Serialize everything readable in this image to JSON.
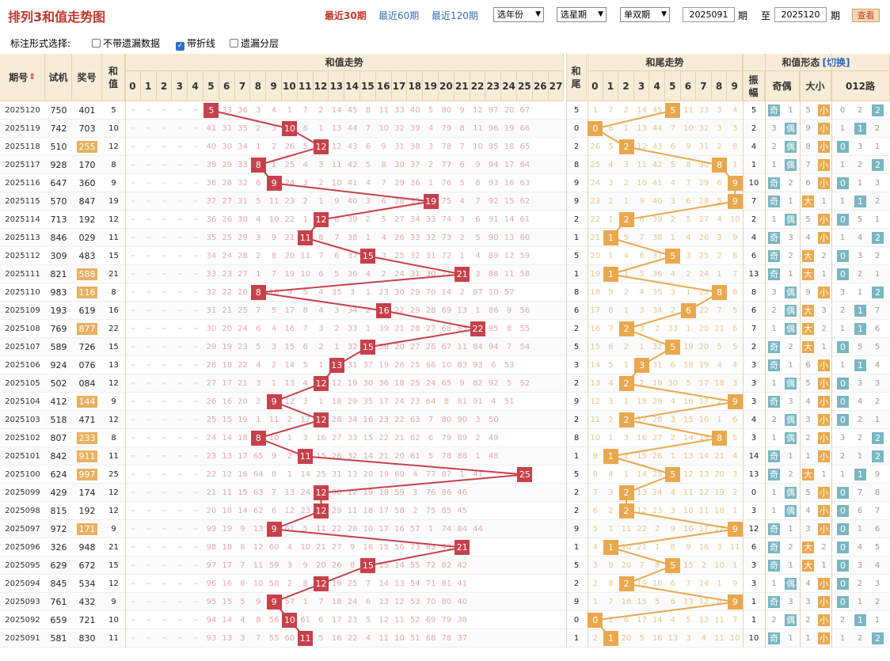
{
  "header": {
    "title": "排列3和值走势图",
    "links": [
      {
        "label": "最近30期",
        "active": true
      },
      {
        "label": "最近60期",
        "active": false
      },
      {
        "label": "最近120期",
        "active": false
      }
    ],
    "selects": [
      "选年份",
      "选星期",
      "单双期"
    ],
    "from_issue": "2025091",
    "label_qi1": "期",
    "label_to": "至",
    "to_issue": "2025120",
    "label_qi2": "期",
    "query_button": "查看"
  },
  "options": {
    "label": "标注形式选择:",
    "items": [
      {
        "label": "不带遗漏数据",
        "checked": false
      },
      {
        "label": "带折线",
        "checked": true
      },
      {
        "label": "遗漏分层",
        "checked": false
      }
    ]
  },
  "table_header": {
    "period": "期号",
    "sort_icon": "⇕",
    "trial": "试机",
    "prize": "奖号",
    "sum_top": "和",
    "sum_bot": "值",
    "sum_trend": "和值走势",
    "tail_top": "和",
    "tail_bot": "尾",
    "tail_trend": "和尾走势",
    "form": "和值形态",
    "switch": "[切换]",
    "amp_top": "振",
    "amp_bot": "幅",
    "oddeven": "奇偶",
    "bigsmall": "大小",
    "route": "012路"
  },
  "colors": {
    "sum_line": "#c8404a",
    "tail_line": "#e9a84e",
    "header_bg": "#f7ecd8"
  },
  "rows": [
    {
      "p": "2025120",
      "t": "750",
      "j": "401",
      "hl": false,
      "s": 5,
      "tail": 5,
      "amp": "5",
      "oe": [
        "奇",
        "1"
      ],
      "bs": [
        "5",
        "小"
      ],
      "r": [
        "0",
        "2",
        "2"
      ],
      "om": "33 36 3 4 1 7 2 14 45 8 11 33 40 5 80 9 12 97 20 67",
      "tom": "1 7 2 14 45 11 33 3 4"
    },
    {
      "p": "2025119",
      "t": "742",
      "j": "703",
      "hl": false,
      "s": 10,
      "tail": 0,
      "amp": "2",
      "oe": [
        "3",
        "偶"
      ],
      "bs": [
        "9",
        "小"
      ],
      "r": [
        "1",
        "1",
        "2"
      ],
      "om": "41 31 35 2 3 6 1 13 44 7 10 32 39 4 79 8 11 96 19 66",
      "tom": "6 1 13 44 7 10 32 3 3"
    },
    {
      "p": "2025118",
      "t": "510",
      "j": "255",
      "hl": true,
      "s": 12,
      "tail": 2,
      "amp": "4",
      "oe": [
        "2",
        "偶"
      ],
      "bs": [
        "8",
        "小"
      ],
      "r": [
        "0",
        "3",
        "1"
      ],
      "om": "40 30 34 1 2 26 5 12 43 6 9 31 38 3 78 7 10 95 18 65",
      "tom": "26 5 12 43 6 9 31 2 8"
    },
    {
      "p": "2025117",
      "t": "928",
      "j": "170",
      "hl": false,
      "s": 8,
      "tail": 8,
      "amp": "1",
      "oe": [
        "1",
        "偶"
      ],
      "bs": [
        "7",
        "小"
      ],
      "r": [
        "1",
        "2",
        "2"
      ],
      "om": "39 29 33 1 25 4 3 11 42 5 8 30 37 2 77 6 9 94 17 64",
      "tom": "25 4 3 11 42 5 8 30 1"
    },
    {
      "p": "2025116",
      "t": "647",
      "j": "360",
      "hl": false,
      "s": 9,
      "tail": 9,
      "amp": "10",
      "oe": [
        "奇",
        "2"
      ],
      "bs": [
        "6",
        "小"
      ],
      "r": [
        "0",
        "1",
        "3"
      ],
      "om": "38 28 32 6 24 3 2 10 41 4 7 29 36 1 76 5 8 93 16 63",
      "tom": "24 3 2 10 41 4 7 29 6"
    },
    {
      "p": "2025115",
      "t": "570",
      "j": "847",
      "hl": false,
      "s": 19,
      "tail": 9,
      "amp": "7",
      "oe": [
        "奇",
        "1"
      ],
      "bs": [
        "大",
        "1"
      ],
      "r": [
        "1",
        "1",
        "2"
      ],
      "om": "37 27 31 5 11 23 2 1 9 40 3 6 28 35 75 4 7 92 15 62",
      "tom": "23 2 1 9 40 3 6 28 5"
    },
    {
      "p": "2025114",
      "t": "713",
      "j": "192",
      "hl": false,
      "s": 12,
      "tail": 2,
      "amp": "2",
      "oe": [
        "1",
        "偶"
      ],
      "bs": [
        "5",
        "小"
      ],
      "r": [
        "0",
        "5",
        "1"
      ],
      "om": "36 26 30 4 10 22 1 8 39 2 5 27 34 33 74 3 6 91 14 61",
      "tom": "22 1 8 39 2 5 27 4 10"
    },
    {
      "p": "2025113",
      "t": "846",
      "j": "029",
      "hl": false,
      "s": 11,
      "tail": 1,
      "amp": "4",
      "oe": [
        "奇",
        "3"
      ],
      "bs": [
        "4",
        "小"
      ],
      "r": [
        "1",
        "4",
        "2"
      ],
      "om": "35 25 29 3 9 21 8 7 38 1 4 26 33 32 73 2 5 90 13 60",
      "tom": "21 5 7 38 1 4 26 3 9"
    },
    {
      "p": "2025112",
      "t": "309",
      "j": "483",
      "hl": false,
      "s": 15,
      "tail": 5,
      "amp": "6",
      "oe": [
        "奇",
        "2"
      ],
      "bs": [
        "大",
        "2"
      ],
      "r": [
        "0",
        "3",
        "2"
      ],
      "om": "34 24 28 2 8 20 11 7 6 37 3 25 32 31 72 1 4 89 12 59",
      "tom": "20 1 4 6 37 3 25 2 8"
    },
    {
      "p": "2025111",
      "t": "821",
      "j": "588",
      "hl": true,
      "s": 21,
      "tail": 1,
      "amp": "13",
      "oe": [
        "奇",
        "1"
      ],
      "bs": [
        "大",
        "1"
      ],
      "r": [
        "0",
        "2",
        "1"
      ],
      "om": "33 23 27 1 7 19 10 6 5 36 4 2 24 31 30 71 3 88 11 58",
      "tom": "19 1 5 36 4 2 24 1 7"
    },
    {
      "p": "2025110",
      "t": "983",
      "j": "116",
      "hl": true,
      "s": 8,
      "tail": 8,
      "amp": "8",
      "oe": [
        "3",
        "偶"
      ],
      "bs": [
        "9",
        "小"
      ],
      "r": [
        "3",
        "1",
        "2"
      ],
      "om": "32 22 26 18 9 5 4 35 3 1 23 30 29 70 14 2 87 10 57",
      "tom": "18 9 2 4 35 3 1 23 8"
    },
    {
      "p": "2025109",
      "t": "193",
      "j": "619",
      "hl": false,
      "s": 16,
      "tail": 6,
      "amp": "6",
      "oe": [
        "2",
        "偶"
      ],
      "bs": [
        "大",
        "3"
      ],
      "r": [
        "2",
        "1",
        "7"
      ],
      "om": "31 21 25 7 5 17 8 4 3 34 2 22 29 28 69 13 1 86 9 56",
      "tom": "17 8 1 3 34 2 22 7 5"
    },
    {
      "p": "2025108",
      "t": "769",
      "j": "877",
      "hl": true,
      "s": 22,
      "tail": 2,
      "amp": "7",
      "oe": [
        "1",
        "偶"
      ],
      "bs": [
        "大",
        "2"
      ],
      "r": [
        "1",
        "1",
        "6"
      ],
      "om": "30 20 24 6 4 16 7 3 2 33 1 39 21 28 27 68 85 95 8 55",
      "tom": "16 7 3 2 33 1 20 21 6"
    },
    {
      "p": "2025107",
      "t": "589",
      "j": "726",
      "hl": false,
      "s": 15,
      "tail": 5,
      "amp": "2",
      "oe": [
        "奇",
        "2"
      ],
      "bs": [
        "大",
        "1"
      ],
      "r": [
        "0",
        "5",
        "5"
      ],
      "om": "29 19 23 5 3 15 6 2 1 32 38 20 27 26 67 11 84 94 7 54",
      "tom": "15 6 2 1 32 19 20 5 5"
    },
    {
      "p": "2025106",
      "t": "924",
      "j": "076",
      "hl": false,
      "s": 13,
      "tail": 3,
      "amp": "3",
      "oe": [
        "奇",
        "1"
      ],
      "bs": [
        "6",
        "小"
      ],
      "r": [
        "1",
        "1",
        "4"
      ],
      "om": "28 18 22 4 2 14 5 1 31 37 19 26 25 66 10 83 93 6 53",
      "tom": "14 5 1 31 6 18 19 4 4"
    },
    {
      "p": "2025105",
      "t": "502",
      "j": "084",
      "hl": false,
      "s": 12,
      "tail": 2,
      "amp": "3",
      "oe": [
        "1",
        "偶"
      ],
      "bs": [
        "5",
        "小"
      ],
      "r": [
        "0",
        "3",
        "3"
      ],
      "om": "27 17 21 3 1 13 4 12 19 30 36 18 25 24 65 9 82 92 5 52",
      "tom": "13 4 2 19 30 5 17 18 3"
    },
    {
      "p": "2025104",
      "t": "412",
      "j": "144",
      "hl": true,
      "s": 9,
      "tail": 9,
      "amp": "3",
      "oe": [
        "奇",
        "3"
      ],
      "bs": [
        "4",
        "小"
      ],
      "r": [
        "0",
        "4",
        "2"
      ],
      "om": "26 16 20 2 12 3 1 18 29 35 17 24 23 64 8 81 91 4 51",
      "tom": "12 3 1 18 29 4 16 17 2"
    },
    {
      "p": "2025103",
      "t": "518",
      "j": "471",
      "hl": false,
      "s": 12,
      "tail": 2,
      "amp": "4",
      "oe": [
        "2",
        "偶"
      ],
      "bs": [
        "3",
        "小"
      ],
      "r": [
        "0",
        "2",
        "1"
      ],
      "om": "25 15 19 1 11 2 17 28 34 16 23 22 63 7 80 90 3 50",
      "tom": "11 2 17 28 3 15 16 1 6"
    },
    {
      "p": "2025102",
      "t": "807",
      "j": "233",
      "hl": true,
      "s": 8,
      "tail": 8,
      "amp": "3",
      "oe": [
        "1",
        "偶"
      ],
      "bs": [
        "2",
        "小"
      ],
      "r": [
        "3",
        "2",
        "2"
      ],
      "om": "24 14 18 10 1 3 16 27 33 15 22 21 62 6 79 89 2 49",
      "tom": "10 1 3 16 27 2 14 15 5"
    },
    {
      "p": "2025101",
      "t": "842",
      "j": "911",
      "hl": true,
      "s": 11,
      "tail": 1,
      "amp": "14",
      "oe": [
        "奇",
        "1"
      ],
      "bs": [
        "1",
        "小"
      ],
      "r": [
        "2",
        "1",
        "2"
      ],
      "om": "23 13 17 65 9 2 15 26 32 14 21 20 61 5 78 88 1 48",
      "tom": "9 2 15 26 1 13 14 21 4"
    },
    {
      "p": "2025100",
      "t": "624",
      "j": "997",
      "hl": true,
      "s": 25,
      "tail": 5,
      "amp": "13",
      "oe": [
        "奇",
        "2"
      ],
      "bs": [
        "大",
        "1"
      ],
      "r": [
        "1",
        "1",
        "9"
      ],
      "om": "22 12 16 64 8 1 14 25 31 13 20 19 60 4 77 87 1 47",
      "tom": "8 4 1 14 25 12 13 20 3"
    },
    {
      "p": "2025099",
      "t": "429",
      "j": "174",
      "hl": false,
      "s": 12,
      "tail": 2,
      "amp": "0",
      "oe": [
        "1",
        "偶"
      ],
      "bs": [
        "5",
        "小"
      ],
      "r": [
        "0",
        "7",
        "8"
      ],
      "om": "21 11 15 63 7 13 24 30 12 19 18 59 3 76 86 46",
      "tom": "7 3 13 24 4 11 12 19 2"
    },
    {
      "p": "2025098",
      "t": "815",
      "j": "192",
      "hl": false,
      "s": 12,
      "tail": 2,
      "amp": "3",
      "oe": [
        "1",
        "偶"
      ],
      "bs": [
        "4",
        "小"
      ],
      "r": [
        "0",
        "6",
        "7"
      ],
      "om": "20 10 14 62 6 12 23 29 11 18 17 58 2 75 85 45",
      "tom": "6 2 12 23 3 10 11 18 1"
    },
    {
      "p": "2025097",
      "t": "972",
      "j": "171",
      "hl": true,
      "s": 9,
      "tail": 9,
      "amp": "12",
      "oe": [
        "奇",
        "1"
      ],
      "bs": [
        "3",
        "小"
      ],
      "r": [
        "0",
        "1",
        "6"
      ],
      "om": "99 19 9 13 61 5 11 22 28 10 17 16 57 1 74 84 44",
      "tom": "5 1 11 22 2 9 10 17 12"
    },
    {
      "p": "2025096",
      "t": "326",
      "j": "948",
      "hl": false,
      "s": 21,
      "tail": 1,
      "amp": "6",
      "oe": [
        "奇",
        "2"
      ],
      "bs": [
        "大",
        "2"
      ],
      "r": [
        "0",
        "4",
        "5"
      ],
      "om": "98 18 8 12 60 4 10 21 27 9 16 15 56 73 83 43",
      "tom": "4 10 21 1 8 9 16 3 11"
    },
    {
      "p": "2025095",
      "t": "629",
      "j": "672",
      "hl": false,
      "s": 15,
      "tail": 5,
      "amp": "3",
      "oe": [
        "奇",
        "1"
      ],
      "bs": [
        "大",
        "1"
      ],
      "r": [
        "0",
        "3",
        "4"
      ],
      "om": "97 17 7 11 59 3 9 20 26 8 15 14 55 72 82 42",
      "tom": "3 9 20 7 8 15 2 10 1"
    },
    {
      "p": "2025094",
      "t": "845",
      "j": "534",
      "hl": false,
      "s": 12,
      "tail": 2,
      "amp": "3",
      "oe": [
        "1",
        "偶"
      ],
      "bs": [
        "4",
        "小"
      ],
      "r": [
        "0",
        "2",
        "3"
      ],
      "om": "96 16 6 10 58 2 8 19 25 7 14 13 54 71 81 41",
      "tom": "2 8 19 16 6 7 14 1 9"
    },
    {
      "p": "2025093",
      "t": "761",
      "j": "432",
      "hl": false,
      "s": 9,
      "tail": 9,
      "amp": "1",
      "oe": [
        "奇",
        "3"
      ],
      "bs": [
        "3",
        "小"
      ],
      "r": [
        "0",
        "1",
        "2"
      ],
      "om": "95 15 5 9 57 1 7 18 24 6 13 12 53 70 80 40",
      "tom": "1 7 18 15 5 6 13 12 8"
    },
    {
      "p": "2025092",
      "t": "659",
      "j": "721",
      "hl": false,
      "s": 10,
      "tail": 0,
      "amp": "1",
      "oe": [
        "2",
        "偶"
      ],
      "bs": [
        "2",
        "小"
      ],
      "r": [
        "2",
        "1",
        "1"
      ],
      "om": "94 14 4 8 56 61 6 17 23 5 12 11 52 69 79 38",
      "tom": "1 6 17 14 4 5 12 11 7"
    },
    {
      "p": "2025091",
      "t": "581",
      "j": "830",
      "hl": false,
      "s": 11,
      "tail": 1,
      "amp": "10",
      "oe": [
        "奇",
        "1"
      ],
      "bs": [
        "1",
        "小"
      ],
      "r": [
        "1",
        "2",
        "2"
      ],
      "om": "93 13 3 7 55 60 5 16 22 4 11 10 51 68 78 37",
      "tom": "2 20 5 16 13 3 4 11 10"
    }
  ]
}
